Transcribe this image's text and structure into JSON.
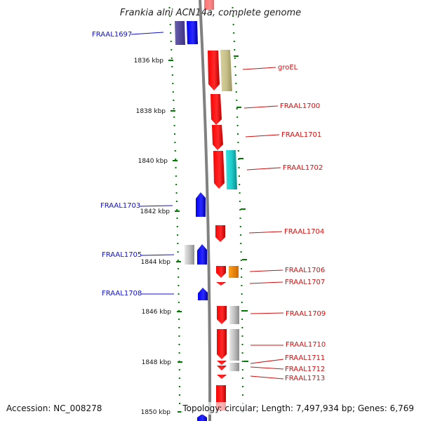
{
  "title": "Frankia alni ACN14a, complete genome",
  "footer": {
    "accession": "Accession: NC_008278",
    "topology": "Topology: circular; Length: 7,497,934 bp; Genes: 6,769"
  },
  "colors": {
    "forward_gene": "#ff0000",
    "reverse_gene": "#0000ff",
    "dark_reverse": "#5b4f9e",
    "olive": "#c8c08a",
    "cyan": "#20cccc",
    "orange": "#ff8c00",
    "grey": "#b8b8b8",
    "backbone": "#808080",
    "tick": "#007a00",
    "label_left": "#1010c8",
    "label_right": "#d01010"
  },
  "ticks": [
    {
      "label": "1836 kbp"
    },
    {
      "label": "1838 kbp"
    },
    {
      "label": "1840 kbp"
    },
    {
      "label": "1842 kbp"
    },
    {
      "label": "1844 kbp"
    },
    {
      "label": "1846 kbp"
    },
    {
      "label": "1848 kbp"
    },
    {
      "label": "1850 kbp"
    }
  ],
  "labels_left": [
    {
      "id": "FRAAL1697",
      "text": "FRAAL1697"
    },
    {
      "id": "FRAAL1703",
      "text": "FRAAL1703"
    },
    {
      "id": "FRAAL1705",
      "text": "FRAAL1705"
    },
    {
      "id": "FRAAL1708",
      "text": "FRAAL1708"
    }
  ],
  "labels_right": [
    {
      "id": "groEL",
      "text": "groEL"
    },
    {
      "id": "FRAAL1700",
      "text": "FRAAL1700"
    },
    {
      "id": "FRAAL1701",
      "text": "FRAAL1701"
    },
    {
      "id": "FRAAL1702",
      "text": "FRAAL1702"
    },
    {
      "id": "FRAAL1704",
      "text": "FRAAL1704"
    },
    {
      "id": "FRAAL1706",
      "text": "FRAAL1706"
    },
    {
      "id": "FRAAL1707",
      "text": "FRAAL1707"
    },
    {
      "id": "FRAAL1709",
      "text": "FRAAL1709"
    },
    {
      "id": "FRAAL1710",
      "text": "FRAAL1710"
    },
    {
      "id": "FRAAL1711",
      "text": "FRAAL1711"
    },
    {
      "id": "FRAAL1712",
      "text": "FRAAL1712"
    },
    {
      "id": "FRAAL1713",
      "text": "FRAAL1713"
    }
  ]
}
